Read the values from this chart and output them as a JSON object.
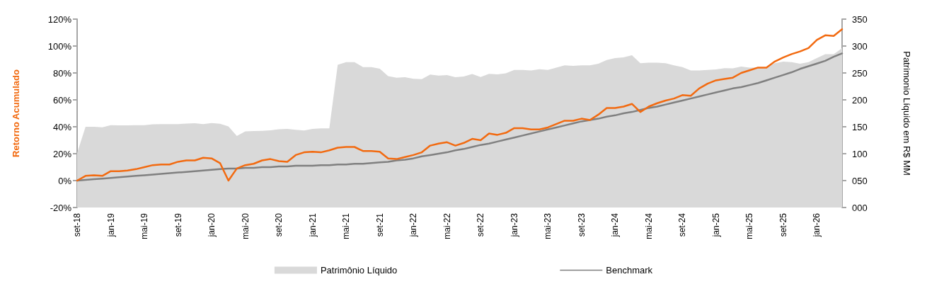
{
  "chart_data": {
    "type": "line",
    "categories": [
      "set-18",
      null,
      null,
      null,
      "jan-19",
      null,
      null,
      null,
      "mai-19",
      null,
      null,
      null,
      "set-19",
      null,
      null,
      null,
      "jan-20",
      null,
      null,
      null,
      "mai-20",
      null,
      null,
      null,
      "set-20",
      null,
      null,
      null,
      "jan-21",
      null,
      null,
      null,
      "mai-21",
      null,
      null,
      null,
      "set-21",
      null,
      null,
      null,
      "jan-22",
      null,
      null,
      null,
      "mai-22",
      null,
      null,
      null,
      "set-22",
      null,
      null,
      null,
      "jan-23",
      null,
      null,
      null,
      "mai-23",
      null,
      null,
      null,
      "set-23",
      null,
      null,
      null,
      "jan-24",
      null,
      null,
      null,
      "mai-24",
      null,
      null,
      null,
      "set-24",
      null,
      null,
      null,
      "jan-25",
      null,
      null,
      null,
      "mai-25",
      null,
      null,
      null,
      "set-25",
      null,
      null,
      null,
      "jan-26",
      null,
      null,
      null
    ],
    "series": [
      {
        "name": "Patrimônio Líquido",
        "type": "area",
        "axis": "y2",
        "color": "#d9d9d9",
        "values": [
          101,
          150,
          150,
          149,
          153,
          152.5,
          152.5,
          153,
          153,
          154.5,
          155,
          155,
          155,
          156,
          156.5,
          155,
          157,
          155.5,
          150.5,
          133,
          141.5,
          142,
          142.5,
          143.5,
          145.5,
          146,
          144.5,
          143,
          146,
          147,
          147,
          265,
          270,
          270,
          261,
          261,
          258,
          244,
          241,
          242,
          239,
          238.5,
          247,
          245,
          246,
          242,
          243.5,
          248,
          242.5,
          248.5,
          247.5,
          249.5,
          255.5,
          255.5,
          254.5,
          257,
          255.5,
          260,
          264,
          263,
          264,
          264,
          267,
          274,
          277.5,
          279,
          283,
          268,
          269,
          269,
          268,
          264,
          261,
          254.5,
          254.5,
          255.5,
          256.5,
          259,
          258.5,
          262,
          260,
          260,
          261,
          268,
          271,
          270,
          267,
          270,
          277.5,
          285,
          285,
          296
        ]
      },
      {
        "name": "Benchmark",
        "color": "#808080",
        "values": [
          0,
          0.5,
          1,
          1.5,
          2,
          2.5,
          3,
          3.5,
          4,
          4.5,
          5,
          5.5,
          6,
          6.5,
          7,
          7.5,
          8,
          8.5,
          9,
          9,
          9.5,
          9.5,
          10,
          10,
          10.5,
          10.5,
          11,
          11,
          11,
          11.5,
          11.5,
          12,
          12,
          12.5,
          12.5,
          13,
          13.5,
          14,
          15,
          15.5,
          16.5,
          18,
          19,
          20,
          21,
          22.5,
          23.5,
          25,
          26.5,
          27.5,
          29,
          30.5,
          32,
          33.5,
          35,
          36.5,
          38,
          39.5,
          41,
          42.5,
          44,
          45,
          46,
          47.5,
          48.5,
          50,
          51,
          52.5,
          54,
          55,
          56.5,
          58,
          59.5,
          61,
          62.5,
          64,
          65.5,
          67,
          68.5,
          69.5,
          71,
          72.5,
          74.5,
          76.5,
          78.5,
          80.5,
          83,
          85,
          87,
          89,
          92,
          94.5
        ]
      },
      {
        "color": "#f26a10",
        "values": [
          0,
          3.5,
          4,
          3.5,
          7,
          7,
          7.5,
          8.5,
          10,
          11.5,
          12,
          12,
          14,
          15,
          15,
          17,
          16.5,
          13,
          0,
          9,
          11.5,
          12.5,
          15,
          16,
          14.5,
          14,
          19,
          21,
          21.5,
          21,
          22.5,
          24.5,
          25,
          25,
          22,
          22,
          21.5,
          16.5,
          16,
          17.5,
          19,
          21,
          26,
          27.5,
          28.5,
          26,
          28,
          31,
          30,
          35,
          34,
          35.5,
          39,
          39,
          38,
          38,
          39.5,
          42,
          44.5,
          44.5,
          46,
          45,
          49,
          54,
          54,
          55,
          57,
          51,
          55,
          57.5,
          59.5,
          61,
          63.5,
          63,
          68.5,
          72,
          74.5,
          75.5,
          76.5,
          80,
          82,
          84,
          84,
          88.5,
          91.5,
          94,
          96,
          98.5,
          104.5,
          108,
          107.5,
          112.5
        ]
      }
    ],
    "ylabel": "Retorno Acumulado",
    "y2label": "Patrimonio Líquido em R$ MM",
    "ylim": [
      -20,
      120
    ],
    "yticks": [
      {
        "value": -20,
        "label": "-20%"
      },
      {
        "value": 0,
        "label": "0%"
      },
      {
        "value": 20,
        "label": "20%"
      },
      {
        "value": 40,
        "label": "40%"
      },
      {
        "value": 60,
        "label": "60%"
      },
      {
        "value": 80,
        "label": "80%"
      },
      {
        "value": 100,
        "label": "100%"
      },
      {
        "value": 120,
        "label": "120%"
      }
    ],
    "y2lim": [
      0,
      350
    ],
    "y2ticks": [
      {
        "value": 0,
        "label": "000"
      },
      {
        "value": 50,
        "label": "050"
      },
      {
        "value": 100,
        "label": "100"
      },
      {
        "value": 150,
        "label": "150"
      },
      {
        "value": 200,
        "label": "200"
      },
      {
        "value": 250,
        "label": "250"
      },
      {
        "value": 300,
        "label": "300"
      },
      {
        "value": 350,
        "label": "350"
      }
    ],
    "grid": false,
    "legend": "bottom",
    "marker": "none",
    "line_style": "solid"
  }
}
